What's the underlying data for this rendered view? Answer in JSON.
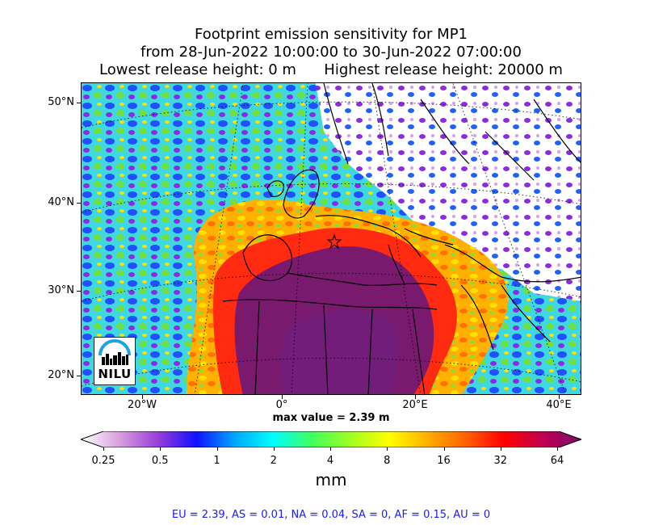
{
  "title": {
    "line1": "Footprint emission sensitivity for MP1",
    "line2": "from 28-Jun-2022 10:00:00 to 30-Jun-2022 07:00:00",
    "line3_left": "Lowest release height: 0 m",
    "line3_right": "Highest release height: 20000 m"
  },
  "map": {
    "lat_labels": [
      "50°N",
      "40°N",
      "30°N",
      "20°N"
    ],
    "lon_labels": [
      "20°W",
      "0°",
      "20°E",
      "40°E"
    ],
    "max_value": "max value = 2.39 m",
    "logo_text": "NILU",
    "colors": {
      "purple": "#7a1a6e",
      "red": "#ff1a00",
      "orange": "#ffa000",
      "yellow": "#ffe000",
      "green": "#70e030",
      "cyan": "#30d8e8",
      "blue": "#2040ff",
      "violet": "#8a2be2",
      "light": "#e8c6ee"
    }
  },
  "colorbar": {
    "labels": [
      "0.25",
      "0.5",
      "1",
      "2",
      "4",
      "8",
      "16",
      "32",
      "64"
    ],
    "units": "mm",
    "colors": [
      "#ffffff",
      "#d8a0e0",
      "#9a3ed8",
      "#1010ff",
      "#00a8ff",
      "#00ffff",
      "#40ff60",
      "#a0ff20",
      "#ffff00",
      "#ffb000",
      "#ff6000",
      "#ff0000",
      "#c00050",
      "#7a0a6e"
    ]
  },
  "regions_text": "EU = 2.39,  AS = 0.01,  NA = 0.04,  SA = 0,  AF = 0.15,  AU = 0"
}
